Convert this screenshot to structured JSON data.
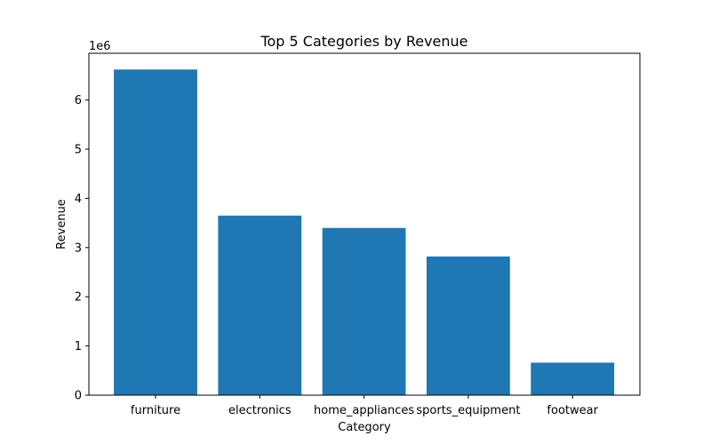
{
  "chart_data": {
    "type": "bar",
    "title": "Top 5 Categories by Revenue",
    "xlabel": "Category",
    "ylabel": "Revenue",
    "y_offset_label": "1e6",
    "categories": [
      "furniture",
      "electronics",
      "home_appliances",
      "sports_equipment",
      "footwear"
    ],
    "values": [
      6620000,
      3650000,
      3400000,
      2820000,
      660000
    ],
    "y_ticks": [
      0,
      1,
      2,
      3,
      4,
      5,
      6
    ],
    "y_tick_scale": 1000000,
    "ylim": [
      0,
      6950000
    ],
    "grid": false,
    "bar_color": "#1f77b4"
  }
}
